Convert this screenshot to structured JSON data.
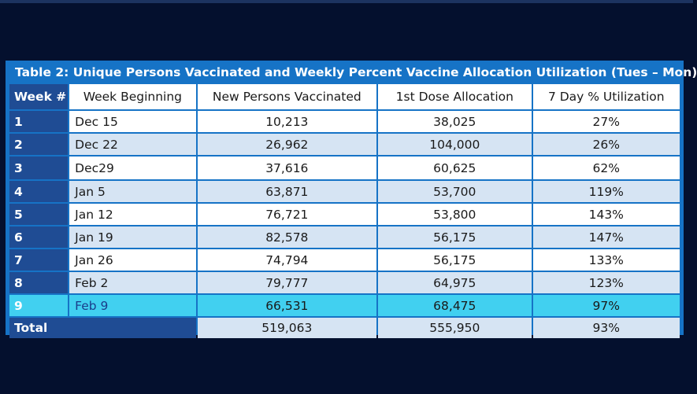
{
  "title": "Table 2: Unique Persons Vaccinated and Weekly Percent Vaccine Allocation Utilization  (Tues – Mon)",
  "headers": [
    "Week #",
    "Week Beginning",
    "New Persons Vaccinated",
    "1st Dose Allocation",
    "7 Day % Utilization"
  ],
  "rows": [
    {
      "week": "1",
      "date": "Dec 15",
      "vaccinated": "10,213",
      "allocation": "38,025",
      "utilization": "27%"
    },
    {
      "week": "2",
      "date": "Dec 22",
      "vaccinated": "26,962",
      "allocation": "104,000",
      "utilization": "26%"
    },
    {
      "week": "3",
      "date": "Dec29",
      "vaccinated": "37,616",
      "allocation": "60,625",
      "utilization": "62%"
    },
    {
      "week": "4",
      "date": "Jan 5",
      "vaccinated": "63,871",
      "allocation": "53,700",
      "utilization": "119%"
    },
    {
      "week": "5",
      "date": "Jan 12",
      "vaccinated": "76,721",
      "allocation": "53,800",
      "utilization": "143%"
    },
    {
      "week": "6",
      "date": "Jan 19",
      "vaccinated": "82,578",
      "allocation": "56,175",
      "utilization": "147%"
    },
    {
      "week": "7",
      "date": "Jan 26",
      "vaccinated": "74,794",
      "allocation": "56,175",
      "utilization": "133%"
    },
    {
      "week": "8",
      "date": "Feb 2",
      "vaccinated": "79,777",
      "allocation": "64,975",
      "utilization": "123%"
    },
    {
      "week": "9",
      "date": "Feb 9",
      "vaccinated": "66,531",
      "allocation": "68,475",
      "utilization": "97%"
    }
  ],
  "total": {
    "label": "Total",
    "vaccinated": "519,063",
    "allocation": "555,950",
    "utilization": "93%"
  },
  "colors": {
    "background": "#04102e",
    "frame": "#1673c6",
    "week_cell": "#1f4c94",
    "row_alt": "#d6e4f3",
    "highlight": "#41d0f0"
  }
}
